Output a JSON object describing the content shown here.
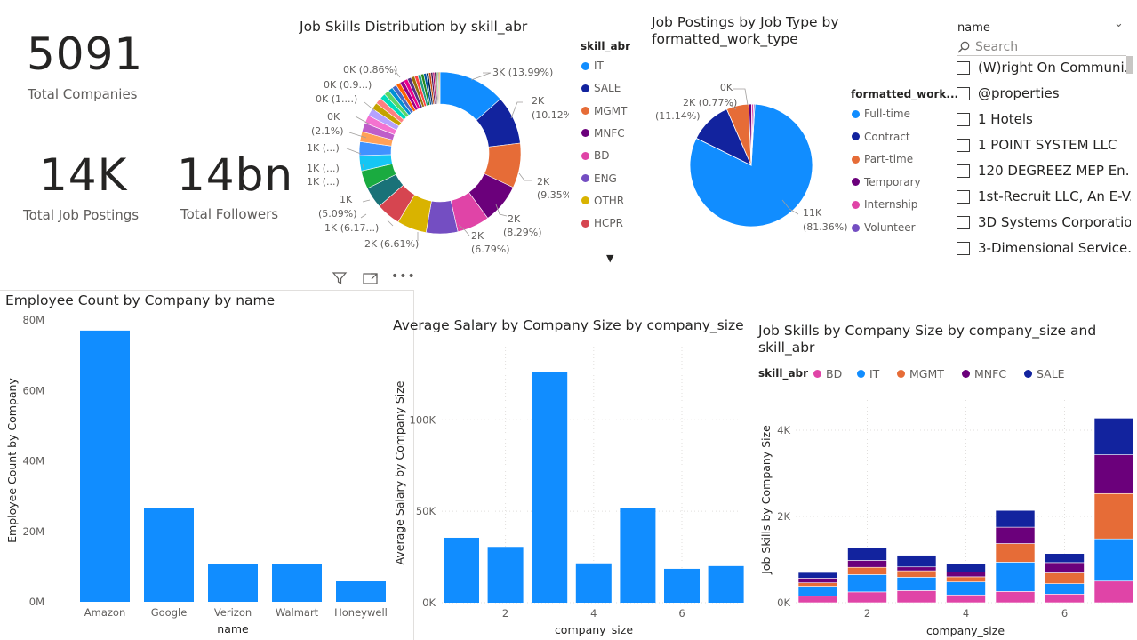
{
  "cards": [
    {
      "value": "5091",
      "label": "Total Companies"
    },
    {
      "value": "14K",
      "label": "Total Job Postings"
    },
    {
      "value": "14bn",
      "label": "Total Followers"
    }
  ],
  "donut": {
    "title": "Job Skills Distribution by skill_abr",
    "legend_title": "skill_abr",
    "legend": [
      {
        "name": "IT",
        "color": "#118DFF"
      },
      {
        "name": "SALE",
        "color": "#12239E"
      },
      {
        "name": "MGMT",
        "color": "#E66C37"
      },
      {
        "name": "MNFC",
        "color": "#6B007B"
      },
      {
        "name": "BD",
        "color": "#E044A7"
      },
      {
        "name": "ENG",
        "color": "#744EC2"
      },
      {
        "name": "OTHR",
        "color": "#D9B300"
      },
      {
        "name": "HCPR",
        "color": "#D64550"
      }
    ],
    "labels": [
      {
        "text": "3K (13.99%)"
      },
      {
        "text": "2K"
      },
      {
        "text": "(10.12%)"
      },
      {
        "text": "2K"
      },
      {
        "text": "(9.35%)"
      },
      {
        "text": "2K"
      },
      {
        "text": "(8.29%)"
      },
      {
        "text": "2K"
      },
      {
        "text": "(6.79%)"
      },
      {
        "text": "2K (6.61%)"
      },
      {
        "text": "1K (6.17...)"
      },
      {
        "text": "1K"
      },
      {
        "text": "(5.09%)"
      },
      {
        "text": "1K (...)"
      },
      {
        "text": "1K (...)"
      },
      {
        "text": "1K (...)"
      },
      {
        "text": "0K"
      },
      {
        "text": "(2.1%)"
      },
      {
        "text": "0K (1....)"
      },
      {
        "text": "0K (0.9...)"
      },
      {
        "text": "0K (0.86%)"
      }
    ],
    "scroll_icon": "caret-down-icon"
  },
  "pie": {
    "title_line1": "Job Postings by Job Type by",
    "title_line2": "formatted_work_type",
    "legend_title": "formatted_work...",
    "legend": [
      {
        "name": "Full-time",
        "color": "#118DFF"
      },
      {
        "name": "Contract",
        "color": "#12239E"
      },
      {
        "name": "Part-time",
        "color": "#E66C37"
      },
      {
        "name": "Temporary",
        "color": "#6B007B"
      },
      {
        "name": "Internship",
        "color": "#E044A7"
      },
      {
        "name": "Volunteer",
        "color": "#744EC2"
      }
    ],
    "labels": [
      {
        "text": "0K"
      },
      {
        "text": "2K (0.77%)"
      },
      {
        "text": "(11.14%)"
      },
      {
        "text": "11K"
      },
      {
        "text": "(81.36%)"
      }
    ]
  },
  "slicer": {
    "title": "name",
    "search_placeholder": "Search",
    "items": [
      "(W)right On Communi...",
      "@properties",
      "1 Hotels",
      "1 POINT SYSTEM LLC",
      "120 DEGREEZ MEP En...",
      "1st-Recruit LLC, An E-V...",
      "3D Systems Corporation",
      "3-Dimensional Service..."
    ]
  },
  "visual_header_icons": [
    "filter-icon",
    "focus-mode-icon",
    "more-options-icon"
  ],
  "chart_data": [
    {
      "type": "pie",
      "title": "Job Skills Distribution by skill_abr",
      "donut": true,
      "legend_title": "skill_abr",
      "slices": [
        {
          "name": "IT",
          "percent": 13.99,
          "label": "3K",
          "color": "#118DFF"
        },
        {
          "name": "SALE",
          "percent": 10.12,
          "label": "2K",
          "color": "#12239E"
        },
        {
          "name": "MGMT",
          "percent": 9.35,
          "label": "2K",
          "color": "#E66C37"
        },
        {
          "name": "MNFC",
          "percent": 8.29,
          "label": "2K",
          "color": "#6B007B"
        },
        {
          "name": "BD",
          "percent": 6.79,
          "label": "2K",
          "color": "#E044A7"
        },
        {
          "name": "ENG",
          "percent": 6.61,
          "label": "2K",
          "color": "#744EC2"
        },
        {
          "name": "OTHR",
          "percent": 6.17,
          "label": "1K",
          "color": "#D9B300"
        },
        {
          "name": "HCPR",
          "percent": 5.09,
          "label": "1K",
          "color": "#D64550"
        },
        {
          "percent": 4.4,
          "label": "1K",
          "color": "#197278"
        },
        {
          "percent": 3.8,
          "label": "1K",
          "color": "#1AAB40"
        },
        {
          "percent": 3.2,
          "label": "1K",
          "color": "#15C6F4"
        },
        {
          "percent": 2.9,
          "color": "#4092FF"
        },
        {
          "percent": 2.1,
          "label": "0K",
          "color": "#FFA058"
        },
        {
          "percent": 1.9,
          "color": "#BE5DC9"
        },
        {
          "percent": 1.7,
          "color": "#F472D0"
        },
        {
          "percent": 1.6,
          "label": "0K",
          "color": "#B5A1FF"
        },
        {
          "percent": 1.4,
          "color": "#C4A200"
        },
        {
          "percent": 1.3,
          "color": "#FF8080"
        },
        {
          "percent": 1.2,
          "color": "#00DBBC"
        },
        {
          "percent": 1.1,
          "color": "#5BD667"
        },
        {
          "percent": 1.0,
          "label": "0K",
          "color": "#0091D5"
        },
        {
          "percent": 0.95,
          "label": "0K",
          "color": "#4668C5"
        },
        {
          "percent": 0.9,
          "color": "#FF6300"
        },
        {
          "percent": 0.88,
          "color": "#99008A"
        },
        {
          "percent": 0.86,
          "label": "0K",
          "color": "#EC008C"
        },
        {
          "percent": 0.8,
          "color": "#533285"
        },
        {
          "percent": 0.75,
          "color": "#99700A"
        },
        {
          "percent": 0.7,
          "color": "#FF4141"
        },
        {
          "percent": 0.65,
          "color": "#1F9A85"
        },
        {
          "percent": 0.6,
          "color": "#25891C"
        },
        {
          "percent": 0.55,
          "color": "#0057A2"
        },
        {
          "percent": 0.5,
          "color": "#002050"
        },
        {
          "percent": 0.45,
          "color": "#C94F0F"
        },
        {
          "percent": 0.4,
          "color": "#450F54"
        },
        {
          "percent": 0.35,
          "color": "#B60064"
        },
        {
          "percent": 0.3,
          "color": "#34124F"
        },
        {
          "percent": 0.25,
          "color": "#6A5A29"
        },
        {
          "percent": 0.2,
          "color": "#1AAB40"
        },
        {
          "percent": 0.2,
          "color": "#BA141A"
        },
        {
          "percent": 0.2,
          "color": "#C8A200"
        }
      ]
    },
    {
      "type": "pie",
      "title": "Job Postings by Job Type by formatted_work_type",
      "legend_title": "formatted_work...",
      "slices": [
        {
          "name": "Full-time",
          "percent": 81.36,
          "label": "11K",
          "color": "#118DFF"
        },
        {
          "name": "Contract",
          "percent": 11.14,
          "label": "2K",
          "color": "#12239E"
        },
        {
          "name": "Part-time",
          "percent": 5.9,
          "color": "#E66C37"
        },
        {
          "name": "Temporary",
          "percent": 0.77,
          "label": "0K",
          "color": "#6B007B"
        },
        {
          "name": "Internship",
          "percent": 0.5,
          "color": "#E044A7"
        },
        {
          "name": "Volunteer",
          "percent": 0.33,
          "color": "#744EC2"
        }
      ]
    },
    {
      "type": "bar",
      "title": "Employee Count by Company by name",
      "xlabel": "name",
      "ylabel": "Employee Count by Company",
      "categories": [
        "Amazon",
        "Google",
        "Verizon",
        "Walmart",
        "Honeywell"
      ],
      "values": [
        77000000,
        26700000,
        10800000,
        10800000,
        5800000
      ],
      "ylim": [
        0,
        80000000
      ],
      "yticks": [
        "0M",
        "20M",
        "40M",
        "60M",
        "80M"
      ],
      "color": "#118DFF"
    },
    {
      "type": "bar",
      "title": "Average Salary by Company Size by company_size",
      "xlabel": "company_size",
      "ylabel": "Average Salary by Company Size",
      "x": [
        0,
        1,
        2,
        3,
        4,
        5,
        6,
        7
      ],
      "values": [
        35500,
        30500,
        126000,
        21500,
        52000,
        18500,
        20000
      ],
      "x_values": [
        1,
        2,
        3,
        4,
        5,
        6,
        7
      ],
      "xticks": [
        "2",
        "4",
        "6"
      ],
      "yticks": [
        "0K",
        "50K",
        "100K"
      ],
      "ylim": [
        0,
        140000
      ],
      "color": "#118DFF",
      "grid": true
    },
    {
      "type": "bar",
      "stacked": true,
      "title": "Job Skills by Company Size by company_size and skill_abr",
      "xlabel": "company_size",
      "ylabel": "Job Skills by Company Size",
      "legend_title": "skill_abr",
      "categories": [
        "1",
        "2",
        "3",
        "4",
        "5",
        "6",
        "7"
      ],
      "xticks": [
        "2",
        "4",
        "6"
      ],
      "yticks": [
        "0K",
        "2K",
        "4K"
      ],
      "ylim": [
        0,
        4700
      ],
      "series": [
        {
          "name": "BD",
          "color": "#E044A7",
          "values": [
            150,
            250,
            280,
            180,
            260,
            200,
            500
          ]
        },
        {
          "name": "IT",
          "color": "#118DFF",
          "values": [
            230,
            400,
            310,
            300,
            680,
            240,
            980
          ]
        },
        {
          "name": "MGMT",
          "color": "#E66C37",
          "values": [
            80,
            170,
            150,
            120,
            430,
            250,
            1050
          ]
        },
        {
          "name": "MNFC",
          "color": "#6B007B",
          "values": [
            110,
            160,
            90,
            110,
            380,
            240,
            900
          ]
        },
        {
          "name": "SALE",
          "color": "#12239E",
          "values": [
            130,
            290,
            270,
            190,
            390,
            210,
            850
          ]
        }
      ],
      "grid": true
    }
  ]
}
